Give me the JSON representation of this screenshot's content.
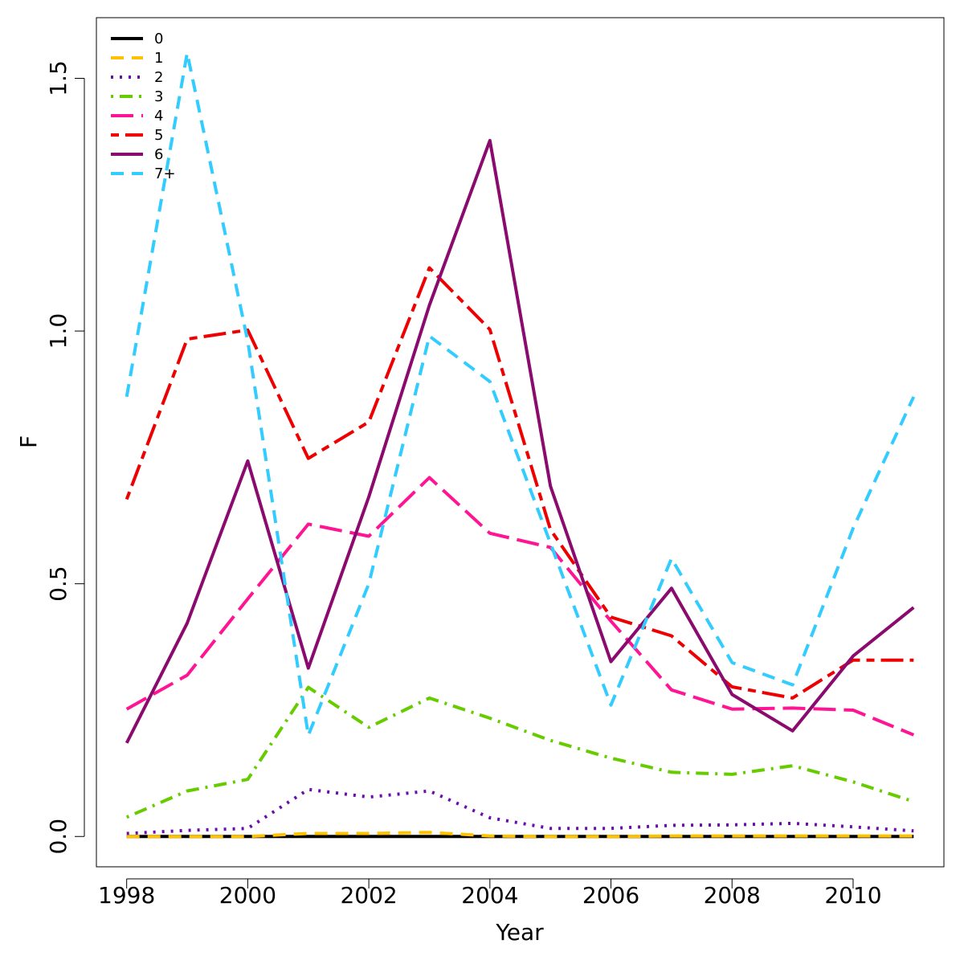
{
  "chart_data": {
    "type": "line",
    "title": "",
    "xlabel": "Year",
    "ylabel": "F",
    "xlim": [
      1997.5,
      2011.5
    ],
    "ylim": [
      -0.06,
      1.62
    ],
    "x_ticks": [
      1998,
      2000,
      2002,
      2004,
      2006,
      2008,
      2010
    ],
    "y_ticks": [
      0.0,
      0.5,
      1.0,
      1.5
    ],
    "x_tick_labels": [
      "1998",
      "2000",
      "2002",
      "2004",
      "2006",
      "2008",
      "2010"
    ],
    "y_tick_labels": [
      "0.0",
      "0.5",
      "1.0",
      "1.5"
    ],
    "grid": false,
    "legend_position": "top-left",
    "x": [
      1998,
      1999,
      2000,
      2001,
      2002,
      2003,
      2004,
      2005,
      2006,
      2007,
      2008,
      2009,
      2010,
      2011
    ],
    "series": [
      {
        "name": "0",
        "color": "#000000",
        "dash": "none",
        "values": [
          0.0,
          0.0,
          0.0,
          0.0,
          0.0,
          0.0,
          0.0,
          0.0,
          0.0,
          0.0,
          0.0,
          0.0,
          0.0,
          0.0
        ]
      },
      {
        "name": "1",
        "color": "#FFC200",
        "dash": "dashed",
        "values": [
          0.0,
          0.0,
          0.0,
          0.006,
          0.006,
          0.008,
          0.001,
          0.0,
          0.0,
          0.001,
          0.001,
          0.001,
          0.001,
          0.001
        ]
      },
      {
        "name": "2",
        "color": "#6A0DAD",
        "dash": "dotted",
        "values": [
          0.006,
          0.012,
          0.016,
          0.093,
          0.078,
          0.09,
          0.037,
          0.016,
          0.016,
          0.022,
          0.023,
          0.026,
          0.019,
          0.011
        ]
      },
      {
        "name": "3",
        "color": "#66CC00",
        "dash": "dotdash",
        "values": [
          0.038,
          0.09,
          0.113,
          0.295,
          0.216,
          0.274,
          0.234,
          0.19,
          0.155,
          0.127,
          0.123,
          0.14,
          0.108,
          0.069
        ]
      },
      {
        "name": "4",
        "color": "#FF1493",
        "dash": "longdash",
        "values": [
          0.252,
          0.319,
          0.47,
          0.618,
          0.594,
          0.71,
          0.6,
          0.572,
          0.426,
          0.29,
          0.252,
          0.254,
          0.25,
          0.201
        ]
      },
      {
        "name": "5",
        "color": "#EE0000",
        "dash": "twodash",
        "values": [
          0.667,
          0.984,
          1.002,
          0.748,
          0.82,
          1.125,
          1.003,
          0.607,
          0.434,
          0.397,
          0.296,
          0.274,
          0.349,
          0.349
        ]
      },
      {
        "name": "6",
        "color": "#8B0A6E",
        "dash": "none",
        "values": [
          0.185,
          0.422,
          0.743,
          0.333,
          0.672,
          1.051,
          1.377,
          0.693,
          0.346,
          0.491,
          0.281,
          0.209,
          0.357,
          0.453
        ]
      },
      {
        "name": "7+",
        "color": "#33CCFF",
        "dash": "dashed",
        "values": [
          0.87,
          1.55,
          0.98,
          0.2,
          0.5,
          0.99,
          0.9,
          0.58,
          0.26,
          0.55,
          0.344,
          0.3,
          0.61,
          0.87
        ]
      }
    ]
  }
}
